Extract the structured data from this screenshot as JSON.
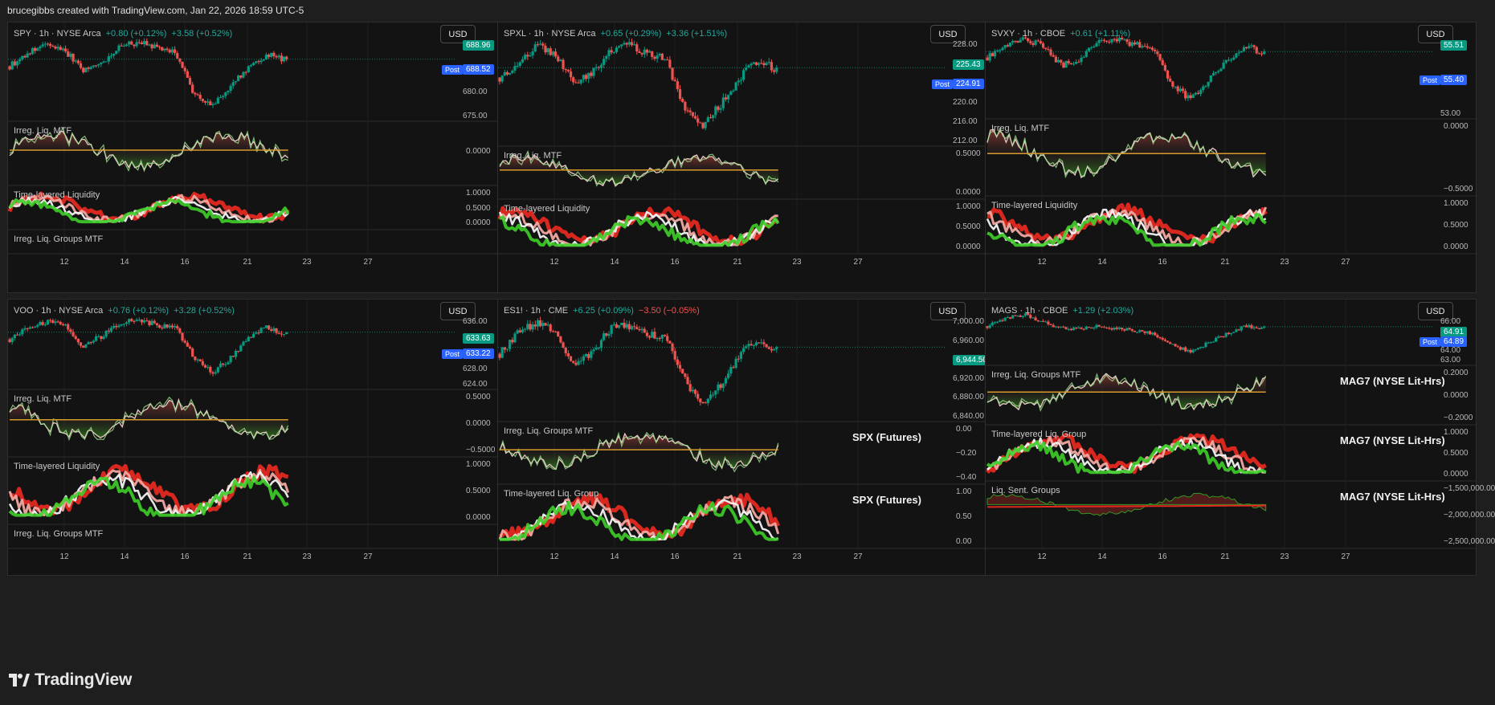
{
  "header": {
    "text": "brucegibbs created with TradingView.com, Jan 22, 2026 18:59 UTC-5"
  },
  "footer": {
    "logo_text": "TradingView"
  },
  "colors": {
    "up": "#089981",
    "down": "#ef5350",
    "bg": "#131313",
    "liq_green": "#3fcf2a",
    "liq_red": "#e2281f",
    "zero_line": "#d79a2b"
  },
  "post_badge_label": "Post",
  "x_ticks": [
    "12",
    "14",
    "16",
    "21",
    "23",
    "27"
  ],
  "panels": [
    {
      "id": "spy",
      "symbol": "SPY · 1h · NYSE Arca",
      "change_1": "+0.80 (+0.12%)",
      "change_2": "+3.58 (+0.52%)",
      "currency": "USD",
      "price_ticks": [
        "688.96",
        "688.52",
        "680.00",
        "675.00"
      ],
      "last_price": "688.96",
      "post_price": "688.52",
      "panes": [
        {
          "label": "Irreg. Liq. MTF",
          "right_label": "",
          "ticks": [
            "0.0000"
          ]
        },
        {
          "label": "Time-layered Liquidity",
          "right_label": "",
          "ticks": [
            "1.0000",
            "0.5000",
            "0.0000"
          ]
        },
        {
          "label": "Irreg. Liq. Groups MTF",
          "right_label": "",
          "ticks": []
        }
      ]
    },
    {
      "id": "spxl",
      "symbol": "SPXL · 1h · NYSE Arca",
      "change_1": "+0.65 (+0.29%)",
      "change_2": "+3.36 (+1.51%)",
      "currency": "USD",
      "price_ticks": [
        "228.00",
        "225.43",
        "224.91",
        "220.00",
        "216.00",
        "212.00"
      ],
      "last_price": "225.43",
      "post_price": "224.91",
      "panes": [
        {
          "label": "Irreg. Liq. MTF",
          "right_label": "",
          "ticks": [
            "0.5000",
            "0.0000"
          ]
        },
        {
          "label": "Time-layered Liquidity",
          "right_label": "",
          "ticks": [
            "1.0000",
            "0.5000",
            "0.0000"
          ]
        }
      ]
    },
    {
      "id": "svxy",
      "symbol": "SVXY · 1h · CBOE",
      "change_1": "+0.61 (+1.11%)",
      "change_2": "",
      "currency": "USD",
      "price_ticks": [
        "55.51",
        "55.40",
        "53.00"
      ],
      "last_price": "55.51",
      "post_price": "55.40",
      "panes": [
        {
          "label": "Irreg. Liq. MTF",
          "right_label": "",
          "ticks": [
            "0.0000",
            "−0.5000"
          ]
        },
        {
          "label": "Time-layered Liquidity",
          "right_label": "",
          "ticks": [
            "1.0000",
            "0.5000",
            "0.0000"
          ]
        }
      ]
    },
    {
      "id": "voo",
      "symbol": "VOO · 1h · NYSE Arca",
      "change_1": "+0.76 (+0.12%)",
      "change_2": "+3.28 (+0.52%)",
      "currency": "USD",
      "price_ticks": [
        "636.00",
        "633.63",
        "633.22",
        "628.00",
        "624.00"
      ],
      "last_price": "633.63",
      "post_price": "633.22",
      "panes": [
        {
          "label": "Irreg. Liq. MTF",
          "right_label": "",
          "ticks": [
            "0.5000",
            "0.0000",
            "−0.5000"
          ]
        },
        {
          "label": "Time-layered Liquidity",
          "right_label": "",
          "ticks": [
            "1.0000",
            "0.5000",
            "0.0000"
          ]
        },
        {
          "label": "Irreg. Liq. Groups MTF",
          "right_label": "",
          "ticks": []
        }
      ]
    },
    {
      "id": "es1",
      "symbol": "ES1! · 1h · CME",
      "change_1": "+6.25 (+0.09%)",
      "change_2": "−3.50 (−0.05%)",
      "currency": "USD",
      "price_ticks": [
        "7,000.00",
        "6,960.00",
        "6,944.50",
        "6,920.00",
        "6,880.00",
        "6,840.00"
      ],
      "last_price": "6,944.50",
      "post_price": "",
      "panes": [
        {
          "label": "Irreg. Liq. Groups MTF",
          "right_label": "SPX (Futures)",
          "ticks": [
            "0.00",
            "−0.20",
            "−0.40"
          ]
        },
        {
          "label": "Time-layered Liq. Group",
          "right_label": "SPX (Futures)",
          "ticks": [
            "1.00",
            "0.50",
            "0.00"
          ]
        }
      ]
    },
    {
      "id": "mags",
      "symbol": "MAGS · 1h · CBOE",
      "change_1": "+1.29 (+2.03%)",
      "change_2": "",
      "currency": "USD",
      "price_ticks": [
        "66.00",
        "64.91",
        "64.89",
        "64.00",
        "63.00"
      ],
      "last_price": "64.91",
      "post_price": "64.89",
      "panes": [
        {
          "label": "Irreg. Liq. Groups MTF",
          "right_label": "MAG7 (NYSE Lit-Hrs)",
          "ticks": [
            "0.2000",
            "0.0000",
            "−0.2000"
          ]
        },
        {
          "label": "Time-layered Liq. Group",
          "right_label": "MAG7 (NYSE Lit-Hrs)",
          "ticks": [
            "1.0000",
            "0.5000",
            "0.0000"
          ]
        },
        {
          "label": "Liq. Sent. Groups",
          "right_label": "MAG7 (NYSE Lit-Hrs)",
          "ticks": [
            "−1,500,000.00",
            "−2,000,000.00",
            "−2,500,000.00"
          ]
        }
      ]
    }
  ]
}
